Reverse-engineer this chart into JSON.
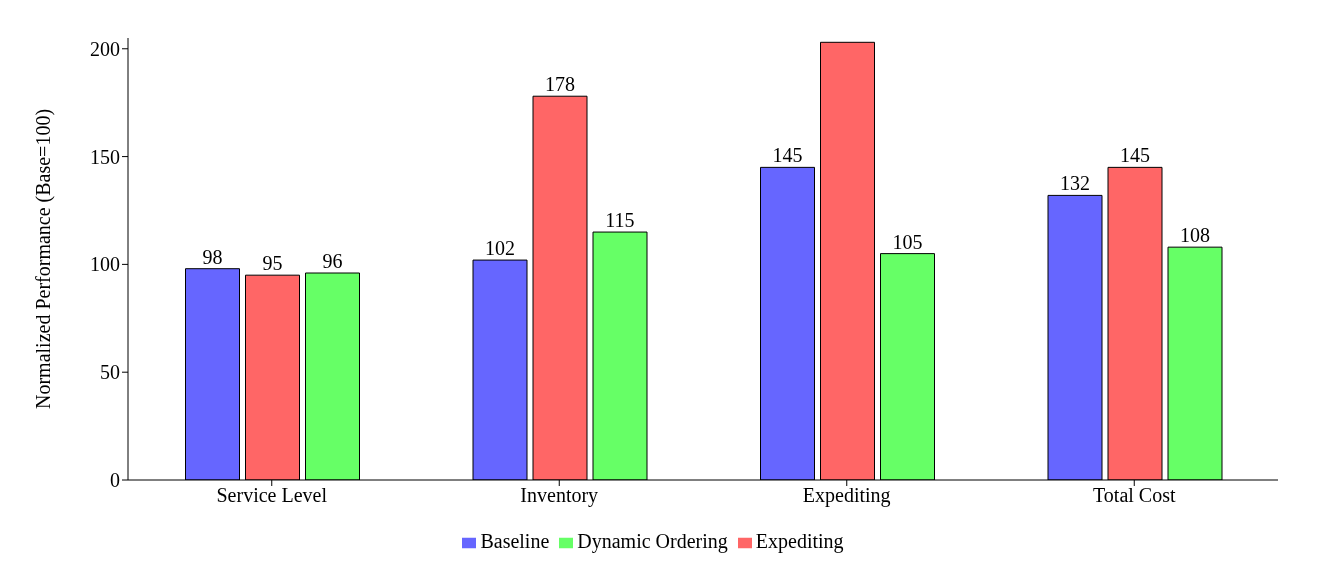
{
  "chart_data": {
    "type": "bar",
    "ylabel": "Normalized Performance (Base=100)",
    "categories": [
      "Service Level",
      "Inventory",
      "Expediting",
      "Total Cost"
    ],
    "series": [
      {
        "name": "Baseline",
        "color": "#6666ff",
        "values": [
          98,
          102,
          145,
          132
        ],
        "value_labels": [
          "98",
          "102",
          "145",
          "132"
        ]
      },
      {
        "name": "Expediting",
        "color": "#ff6666",
        "values": [
          95,
          178,
          203,
          145
        ],
        "value_labels": [
          "95",
          "178",
          null,
          "145"
        ]
      },
      {
        "name": "Dynamic Ordering",
        "color": "#66ff66",
        "values": [
          96,
          115,
          105,
          108
        ],
        "value_labels": [
          "96",
          "115",
          "105",
          "108"
        ]
      }
    ],
    "ylim": [
      0,
      205
    ],
    "yticks": [
      0,
      50,
      100,
      150,
      200
    ],
    "grid": false,
    "legend": "bottom"
  }
}
